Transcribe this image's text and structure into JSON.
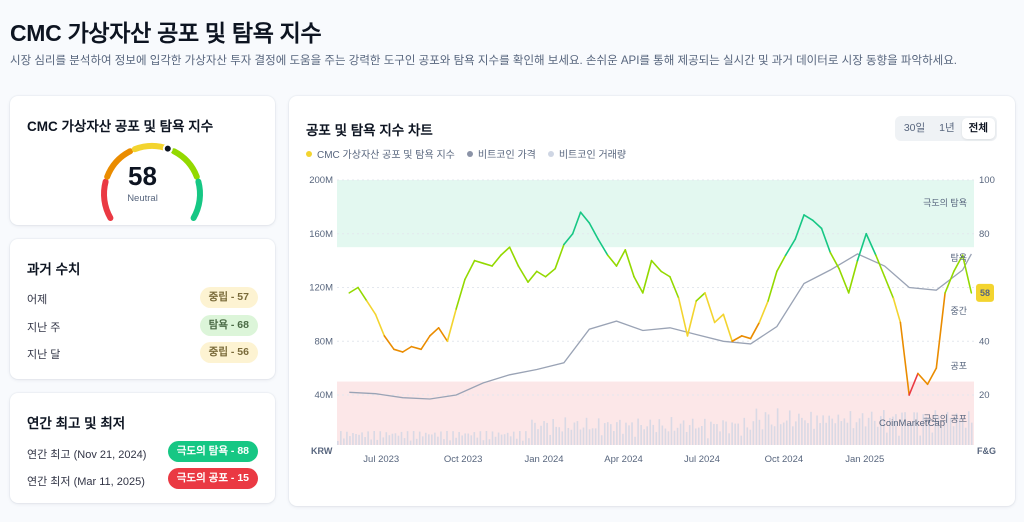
{
  "page": {
    "title": "CMC 가상자산 공포 및 탐욕 지수",
    "description": "시장 심리를 분석하여 정보에 입각한 가상자산 투자 결정에 도움을 주는 강력한 도구인 공포와 탐욕 지수를 확인해 보세요. 손쉬운 API를 통해 제공되는 실시간 및 과거 데이터로 시장 동향을 파악하세요."
  },
  "gauge": {
    "title": "CMC 가상자산 공포 및 탐욕 지수",
    "value": "58",
    "value_num": 58,
    "label": "Neutral",
    "colors": [
      "#ea3943",
      "#ea8c00",
      "#f3d42f",
      "#93d900",
      "#16c784"
    ]
  },
  "historical": {
    "title": "과거 수치",
    "rows": [
      {
        "label": "어제",
        "badge": "중립 - 57",
        "tone": "neutral"
      },
      {
        "label": "지난 주",
        "badge": "탐욕 - 68",
        "tone": "greed"
      },
      {
        "label": "지난 달",
        "badge": "중립 - 56",
        "tone": "neutral"
      }
    ]
  },
  "annual": {
    "title": "연간 최고 및 최저",
    "high": {
      "label": "연간 최고 (Nov 21, 2024)",
      "badge": "극도의 탐욕 - 88"
    },
    "low": {
      "label": "연간 최저 (Mar 11, 2025)",
      "badge": "극도의 공포 - 15"
    }
  },
  "chart": {
    "title": "공포 및 탐욕 지수 차트",
    "tabs": [
      "30일",
      "1년",
      "전체"
    ],
    "active_tab": "전체",
    "legend": [
      {
        "label": "CMC 가상자산 공포 및 탐욕 지수",
        "color": "#f3d42f"
      },
      {
        "label": "비트코인 가격",
        "color": "#8b93a7"
      },
      {
        "label": "비트코인 거래량",
        "color": "#cfd6e4"
      }
    ],
    "left_axis_unit": "KRW",
    "right_axis_unit": "F&G",
    "zone_labels": {
      "extreme_greed": "극도의 탐욕",
      "greed": "탐욕",
      "neutral": "중간",
      "fear": "공포",
      "extreme_fear": "극도의 공포"
    },
    "watermark": "CoinMarketCap",
    "current_badge": "58"
  },
  "chart_data": {
    "type": "line",
    "title": "공포 및 탐욕 지수 차트",
    "x_ticks": [
      "Jul 2023",
      "Oct 2023",
      "Jan 2024",
      "Apr 2024",
      "Jul 2024",
      "Oct 2024",
      "Jan 2025"
    ],
    "y_left": {
      "label": "KRW",
      "ticks": [
        "40M",
        "80M",
        "120M",
        "160M",
        "200M"
      ],
      "range": [
        40,
        200
      ],
      "unit": "M KRW"
    },
    "y_right": {
      "label": "F&G",
      "ticks": [
        20,
        40,
        60,
        80,
        100
      ],
      "range": [
        0,
        100
      ]
    },
    "grid": true,
    "legend_position": "top-left",
    "series": [
      {
        "name": "CMC 가상자산 공포 및 탐욕 지수",
        "axis": "right",
        "x": [
          "2023-06-15",
          "2023-06-25",
          "2023-07-05",
          "2023-07-15",
          "2023-07-25",
          "2023-08-05",
          "2023-08-15",
          "2023-08-25",
          "2023-09-05",
          "2023-09-15",
          "2023-09-25",
          "2023-10-05",
          "2023-10-15",
          "2023-10-25",
          "2023-11-05",
          "2023-11-15",
          "2023-11-25",
          "2023-12-05",
          "2023-12-15",
          "2023-12-25",
          "2024-01-05",
          "2024-01-15",
          "2024-01-25",
          "2024-02-05",
          "2024-02-15",
          "2024-02-25",
          "2024-03-05",
          "2024-03-15",
          "2024-03-25",
          "2024-04-05",
          "2024-04-15",
          "2024-04-25",
          "2024-05-05",
          "2024-05-15",
          "2024-05-25",
          "2024-06-05",
          "2024-06-15",
          "2024-06-25",
          "2024-07-05",
          "2024-07-15",
          "2024-07-25",
          "2024-08-05",
          "2024-08-15",
          "2024-08-25",
          "2024-09-05",
          "2024-09-15",
          "2024-09-25",
          "2024-10-05",
          "2024-10-15",
          "2024-10-25",
          "2024-11-05",
          "2024-11-15",
          "2024-11-25",
          "2024-12-05",
          "2024-12-15",
          "2024-12-25",
          "2025-01-05",
          "2025-01-15",
          "2025-01-25",
          "2025-02-05",
          "2025-02-15",
          "2025-02-25",
          "2025-03-05",
          "2025-03-15",
          "2025-03-25",
          "2025-04-05",
          "2025-04-15",
          "2025-04-25",
          "2025-05-05",
          "2025-05-15",
          "2025-05-25"
        ],
        "values": [
          58,
          60,
          55,
          50,
          42,
          37,
          36,
          38,
          37,
          42,
          45,
          40,
          52,
          63,
          70,
          69,
          68,
          72,
          75,
          68,
          62,
          66,
          64,
          67,
          76,
          80,
          88,
          84,
          78,
          72,
          68,
          74,
          64,
          58,
          70,
          66,
          64,
          56,
          42,
          55,
          58,
          47,
          50,
          40,
          42,
          41,
          47,
          55,
          66,
          72,
          78,
          87,
          85,
          82,
          73,
          67,
          58,
          70,
          80,
          72,
          64,
          56,
          47,
          20,
          28,
          24,
          30,
          58,
          66,
          72,
          58
        ]
      },
      {
        "name": "비트코인 가격",
        "axis": "left",
        "x": [
          "2023-06-15",
          "2023-07-15",
          "2023-08-15",
          "2023-09-15",
          "2023-10-15",
          "2023-11-15",
          "2023-12-15",
          "2024-01-15",
          "2024-02-15",
          "2024-03-15",
          "2024-04-15",
          "2024-05-15",
          "2024-06-15",
          "2024-07-15",
          "2024-08-15",
          "2024-09-15",
          "2024-10-15",
          "2024-11-15",
          "2024-12-15",
          "2025-01-15",
          "2025-02-15",
          "2025-03-15",
          "2025-04-15",
          "2025-05-15",
          "2025-05-25"
        ],
        "values": [
          42,
          41,
          38,
          37,
          40,
          49,
          55,
          59,
          64,
          89,
          95,
          88,
          90,
          85,
          80,
          78,
          91,
          123,
          133,
          145,
          136,
          120,
          118,
          133,
          145
        ]
      }
    ]
  }
}
